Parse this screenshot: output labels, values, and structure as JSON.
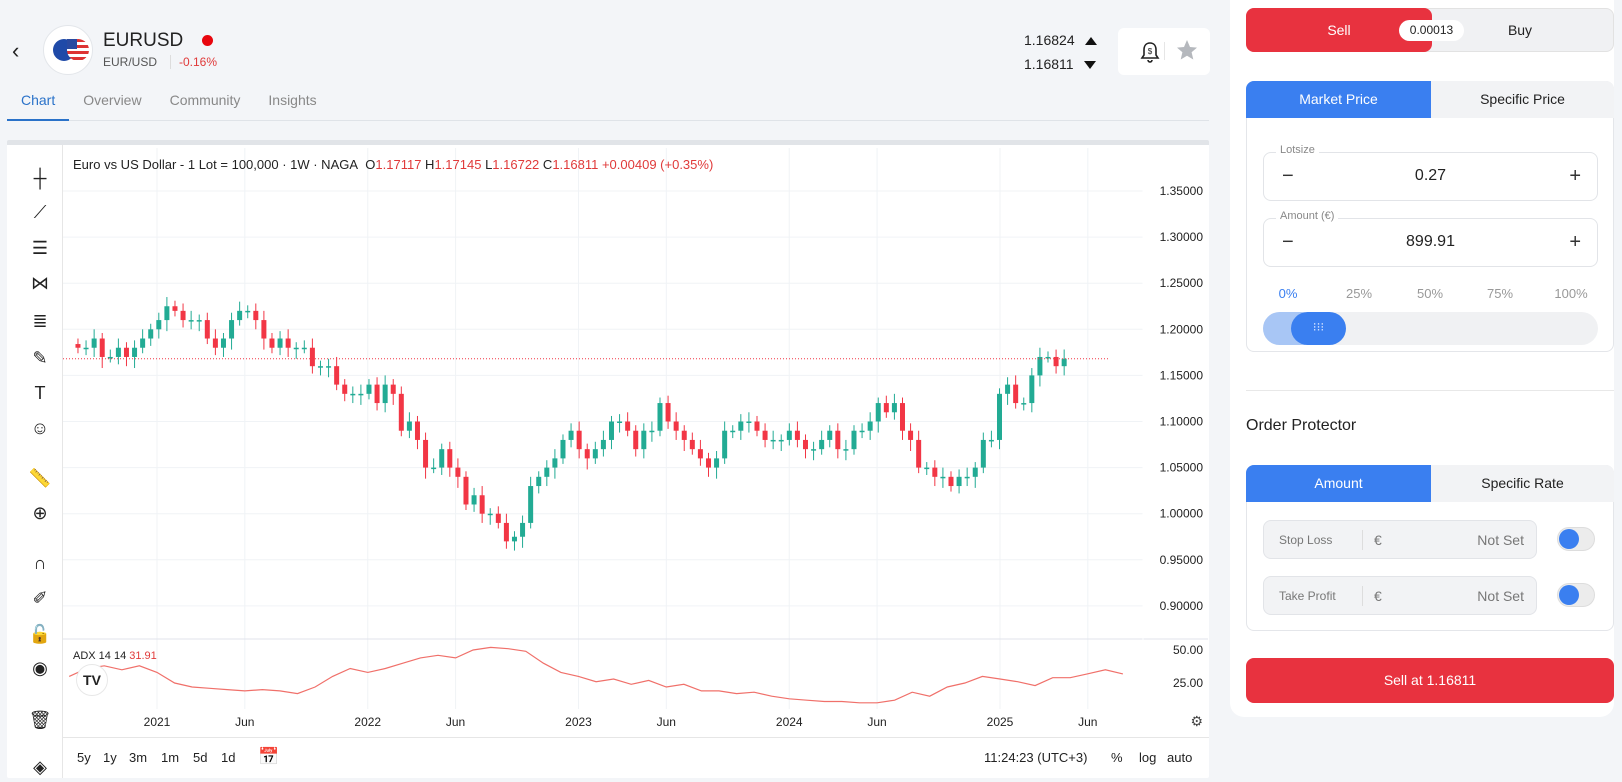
{
  "header": {
    "symbol": "EURUSD",
    "pair": "EUR/USD",
    "change": "-0.16%",
    "ask": "1.16824",
    "bid": "1.16811",
    "live_color": "#e8060e"
  },
  "tabs": [
    {
      "label": "Chart"
    },
    {
      "label": "Overview"
    },
    {
      "label": "Community"
    },
    {
      "label": "Insights"
    }
  ],
  "chart_header": {
    "title": "Euro vs US Dollar - 1 Lot = 100,000 · 1W · NAGA",
    "o_label": "O",
    "o": "1.17117",
    "h_label": "H",
    "h": "1.17145",
    "l_label": "L",
    "l": "1.16722",
    "c_label": "C",
    "c": "1.16811",
    "change": "+0.00409 (+0.35%)"
  },
  "adx_legend": {
    "name": "ADX 14 14",
    "value": "31.91"
  },
  "bottom_bar": {
    "ranges": [
      "5y",
      "1y",
      "3m",
      "1m",
      "5d",
      "1d"
    ],
    "time": "11:24:23 (UTC+3)",
    "percent": "%",
    "log": "log",
    "auto": "auto"
  },
  "chart_data": [
    {
      "type": "candlestick",
      "interval": "1W (shown as 2-week closes)",
      "period_start": "2020-08",
      "closes": [
        1.18,
        1.18,
        1.19,
        1.17,
        1.17,
        1.18,
        1.17,
        1.18,
        1.19,
        1.2,
        1.21,
        1.225,
        1.22,
        1.21,
        1.21,
        1.21,
        1.19,
        1.18,
        1.19,
        1.21,
        1.22,
        1.22,
        1.21,
        1.19,
        1.18,
        1.19,
        1.18,
        1.18,
        1.18,
        1.16,
        1.16,
        1.16,
        1.14,
        1.13,
        1.13,
        1.13,
        1.14,
        1.12,
        1.14,
        1.13,
        1.09,
        1.1,
        1.08,
        1.05,
        1.05,
        1.07,
        1.05,
        1.04,
        1.01,
        1.02,
        1.0,
        1.0,
        0.99,
        0.97,
        0.975,
        0.99,
        1.03,
        1.04,
        1.05,
        1.06,
        1.08,
        1.09,
        1.07,
        1.06,
        1.07,
        1.08,
        1.1,
        1.1,
        1.09,
        1.07,
        1.09,
        1.09,
        1.12,
        1.1,
        1.09,
        1.08,
        1.07,
        1.06,
        1.05,
        1.06,
        1.09,
        1.09,
        1.1,
        1.1,
        1.09,
        1.08,
        1.08,
        1.08,
        1.09,
        1.08,
        1.07,
        1.07,
        1.08,
        1.09,
        1.07,
        1.07,
        1.09,
        1.09,
        1.1,
        1.12,
        1.11,
        1.12,
        1.09,
        1.08,
        1.05,
        1.05,
        1.04,
        1.04,
        1.03,
        1.04,
        1.04,
        1.05,
        1.08,
        1.08,
        1.13,
        1.14,
        1.12,
        1.12,
        1.15,
        1.17,
        1.17,
        1.16,
        1.16811
      ],
      "current_price": 1.16811,
      "y_ticks": [
        "1.35000",
        "1.30000",
        "1.25000",
        "1.20000",
        "1.15000",
        "1.10000",
        "1.05000",
        "1.00000",
        "0.95000",
        "0.90000"
      ],
      "ylim": [
        0.9,
        1.35
      ],
      "x_ticks": [
        {
          "label": "2021",
          "date": "2021-01"
        },
        {
          "label": "Jun",
          "date": "2021-06"
        },
        {
          "label": "2022",
          "date": "2022-01"
        },
        {
          "label": "Jun",
          "date": "2022-06"
        },
        {
          "label": "2023",
          "date": "2023-01"
        },
        {
          "label": "Jun",
          "date": "2023-06"
        },
        {
          "label": "2024",
          "date": "2024-01"
        },
        {
          "label": "Jun",
          "date": "2024-06"
        },
        {
          "label": "2025",
          "date": "2025-01"
        },
        {
          "label": "Jun",
          "date": "2025-06"
        }
      ],
      "up_color": "#22ab94",
      "down_color": "#f23645",
      "grid": true
    },
    {
      "type": "line",
      "name": "ADX 14 14",
      "period_start": "2020-08",
      "interval": "1M",
      "values": [
        30,
        36,
        38,
        35,
        38,
        33,
        25,
        22,
        21,
        20,
        19,
        20,
        19,
        17,
        22,
        30,
        36,
        33,
        36,
        40,
        44,
        46,
        44,
        50,
        52,
        51,
        49,
        40,
        33,
        30,
        26,
        28,
        24,
        27,
        22,
        24,
        19,
        19,
        17,
        18,
        15,
        13,
        12,
        11,
        11,
        10,
        10,
        12,
        18,
        15,
        22,
        25,
        30,
        28,
        26,
        23,
        29,
        29,
        32,
        35,
        31.91
      ],
      "y_ticks": [
        "50.00",
        "25.00"
      ],
      "color": "#f0706a"
    }
  ],
  "order": {
    "sell_label": "Sell",
    "buy_label": "Buy",
    "spread": "0.00013",
    "price_tabs": [
      "Market Price",
      "Specific Price"
    ],
    "lotsize_label": "Lotsize",
    "lotsize": "0.27",
    "amount_label": "Amount (€)",
    "amount": "899.91",
    "minus": "−",
    "plus": "+",
    "percents": [
      "0%",
      "25%",
      "50%",
      "75%",
      "100%"
    ],
    "slider_value_percent": 0,
    "protector_title": "Order Protector",
    "protector_tabs": [
      "Amount",
      "Specific Rate"
    ],
    "stop_loss_label": "Stop Loss",
    "take_profit_label": "Take Profit",
    "currency": "€",
    "not_set": "Not Set",
    "submit": "Sell at 1.16811",
    "sell_color": "#e8323f",
    "accent": "#3a7ff0"
  }
}
